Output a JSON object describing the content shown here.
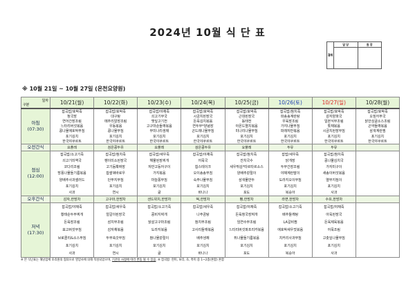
{
  "title": "2024년 10월 식 단 표",
  "approval": {
    "label": "결재",
    "columns": [
      "담 당",
      "원 장"
    ]
  },
  "subtitle": "※ 10월 21일 ~ 10월 27일 (온천요양원)",
  "corner": {
    "top": "일자",
    "bottom": "구분"
  },
  "days": [
    {
      "date": "10/21(월)",
      "type": "weekday"
    },
    {
      "date": "10/22(화)",
      "type": "weekday"
    },
    {
      "date": "10/23(수)",
      "type": "weekday"
    },
    {
      "date": "10/24(목)",
      "type": "weekday"
    },
    {
      "date": "10/25(금)",
      "type": "weekday"
    },
    {
      "date": "10/26(토)",
      "type": "sat"
    },
    {
      "date": "10/27(일)",
      "type": "sun"
    },
    {
      "date": "10/28(월)",
      "type": "weekday"
    }
  ],
  "meals": [
    {
      "key": "breakfast",
      "label": "아침",
      "time": "(07:30)",
      "menus": [
        [
          "잡곡밥/호박죽",
          "청국장",
          "연어간장조림",
          "느타리버섯볶음",
          "콩나물애호박무침",
          "포기김치",
          "한국야쿠르트"
        ],
        [
          "잡곡밥/호박죽",
          "대구탕",
          "메추리알장조림",
          "우동볶음",
          "콩나물무침",
          "포기김치",
          "한국야쿠르트"
        ],
        [
          "잡곡밥/야채죽",
          "쇠고기무국",
          "깻잎고기전",
          "고구마순들깨볶음",
          "무미나리생채",
          "포기김치",
          "한국야쿠르트"
        ],
        [
          "잡곡밥/호박죽",
          "시금치된장국",
          "돈육김치볶음",
          "연두부*양념장",
          "곤드레나물무침",
          "포기김치",
          "한국야쿠르트"
        ],
        [
          "잡곡밥/호박죽",
          "근대된장국",
          "동태전",
          "아몬드멸치볶음",
          "미나리나물무침",
          "포기김치",
          "한국야쿠르트"
        ],
        [
          "잡곡밥/참치죽",
          "파송송계란탕",
          "우육장조림",
          "가지나물무침",
          "파래자반볶음",
          "포기김치",
          "한국야쿠르트"
        ],
        [
          "잡곡밥/호박죽",
          "감자양파국",
          "일본식무조림",
          "톳채볶음",
          "시금치된장무침",
          "포기김치",
          "한국야쿠르트"
        ],
        [
          "잡곡밥/호박죽",
          "오징어무국",
          "닭안심굴소스조림",
          "곤약들깨볶음",
          "삼색계란찜",
          "포기김치",
          "한국야쿠르트"
        ]
      ]
    },
    {
      "key": "am-snack",
      "label": "오전간식",
      "snack": true,
      "menus": [
        "요플레",
        "검은콩두유",
        "요플레",
        "검은콩두유",
        "요플레",
        "두유",
        "두유",
        ""
      ]
    },
    {
      "key": "lunch",
      "label": "점심",
      "time": "(12:00)",
      "menus": [
        [
          "잡곡밥/소고기죽",
          "쇠고기미역국",
          "코다리조림",
          "방풍나물들기름볶음",
          "양배추사과샐러드",
          "포기김치",
          "사과"
        ],
        [
          "잡곡밥/참치죽",
          "팽이미소된장국",
          "고기듬뿍짜장",
          "찹쌀꿔바로우",
          "단무지무침",
          "포기김치",
          "연시"
        ],
        [
          "잡곡밥/새우죽",
          "해물된장찌개",
          "자반고등어구이",
          "가지볶음",
          "마늘쫑무침",
          "포기김치",
          "귤"
        ],
        [
          "잡곡밥/야채죽",
          "어묵국",
          "찹스테이크",
          "오이송송무침",
          "숙주나물무침",
          "포기김치",
          "바나나"
        ],
        [
          "잡곡밥/참치죽",
          "잔치국수",
          "새우튀김*타르타르소스",
          "양배추겉절이",
          "삼색물만두",
          "포기김치",
          "포도"
        ],
        [
          "잡밥/새우죽",
          "닭개장",
          "두부간장조림",
          "야채계란말이",
          "도라지오이무침",
          "포기김치",
          "복숭아"
        ],
        [
          "잡곡밥/참치죽",
          "콩나물김치국",
          "가자미구이",
          "새송이버섯볶음",
          "열무지짐이",
          "포기김치",
          "사과"
        ],
        []
      ]
    },
    {
      "key": "pm-snack",
      "label": "오후간식",
      "snack": true,
      "menus": [
        "감자,한방차",
        "고구마,한방차",
        "샌드위치,한방차",
        "떡,한방차",
        "빵,한방차",
        "라면,한방차",
        "수프,한방차",
        ""
      ]
    },
    {
      "key": "dinner",
      "label": "저녁",
      "time": "(17:30)",
      "menus": [
        [
          "잡곡밥/야채죽",
          "황태순두부찌개",
          "돈육장조림",
          "표고버섯무침",
          "브로콜리&소스무침",
          "포기김치",
          "사과"
        ],
        [
          "잡곡밥/새우죽",
          "얼갈이된장국",
          "삼치무조림",
          "감자채볶음",
          "두부쑥갓무침",
          "포기김치",
          "연시"
        ],
        [
          "잡곡밥/소고기죽",
          "콩비지찌개",
          "닭살고구마조림",
          "도라지볶음",
          "참나물겉절이",
          "포기김치",
          "귤"
        ],
        [
          "잡곡밥/새우죽",
          "나주곰탕",
          "참치무조림",
          "고사리들깨볶음",
          "배추생채",
          "포기김치",
          "바나나"
        ],
        [
          "잡곡밥/야채죽",
          "돈육청국장찌개",
          "임연수무조림",
          "느타리버섯파프리카볶음",
          "취나물들기름볶음",
          "포기김치",
          "포도"
        ],
        [
          "잡곡밥/소고기죽",
          "배추들깨탕",
          "LA갈비찜",
          "애호박새우젓볶음",
          "치커리사과무침",
          "포기김치",
          "복숭아"
        ],
        [
          "잡곡밥/야채죽",
          "아욱된장국",
          "돈육제육볶음",
          "어묵조림",
          "고춧잎나물무침",
          "포기김치",
          "사과"
        ],
        []
      ]
    }
  ],
  "note": {
    "part1": "※ 본 식단표는 해당업체 조리원의 협의으로 영양사에 의해 작성되었으며, ",
    "underlined": "기관의 사정에 따라 변동 될 수 있음",
    "part2": ". ※ 잡곡밥: 현미, 보리, 조, 흑미 중 1~2종(혼합) 혼합"
  },
  "colors": {
    "header_bg": "#e6f5d7",
    "saturday": "#1f3fb0",
    "sunday": "#dd2222"
  }
}
